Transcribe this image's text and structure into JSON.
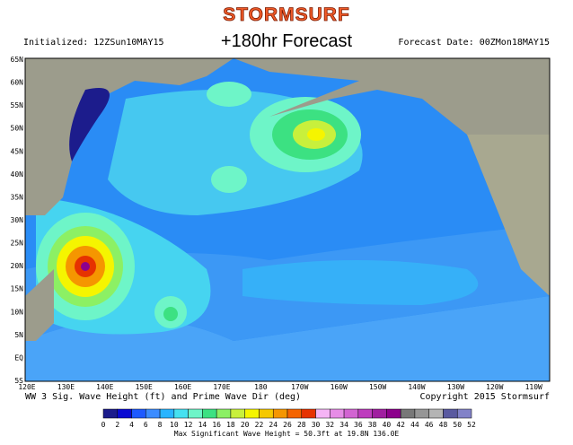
{
  "header": {
    "logo": "STORMSURF",
    "title": "+180hr Forecast",
    "initialized": "Initialized: 12ZSun10MAY15",
    "forecast_date": "Forecast Date: 00ZMon18MAY15"
  },
  "map": {
    "lat_labels": [
      "65N",
      "60N",
      "55N",
      "50N",
      "45N",
      "40N",
      "35N",
      "30N",
      "25N",
      "20N",
      "15N",
      "10N",
      "5N",
      "EQ",
      "5S"
    ],
    "lon_labels": [
      "120E",
      "130E",
      "140E",
      "150E",
      "160E",
      "170E",
      "180",
      "170W",
      "160W",
      "150W",
      "140W",
      "130W",
      "120W",
      "110W"
    ]
  },
  "footer": {
    "caption": "WW 3 Sig. Wave Height (ft) and Prime Wave Dir (deg)",
    "copyright": "Copyright 2015 Stormsurf",
    "max_note": "Max Significant Wave Height = 50.3ft at 19.8N 136.0E"
  },
  "legend": {
    "labels": [
      "0",
      "2",
      "4",
      "6",
      "8",
      "10",
      "12",
      "14",
      "16",
      "18",
      "20",
      "22",
      "24",
      "26",
      "28",
      "30",
      "32",
      "34",
      "36",
      "38",
      "40",
      "42",
      "44",
      "46",
      "48",
      "50",
      "52"
    ],
    "colors": [
      "#1c1c8c",
      "#0a0ad2",
      "#1e5aff",
      "#3c8cff",
      "#28b4ff",
      "#46e1f0",
      "#6ef5c8",
      "#3ce182",
      "#8cf064",
      "#c8f03c",
      "#f5f500",
      "#f5c800",
      "#f59600",
      "#f56400",
      "#e63200",
      "#f5b4f5",
      "#e68ce6",
      "#d264d2",
      "#be3cbe",
      "#a01ea0",
      "#8c008c",
      "#787878",
      "#969696",
      "#b4b4b4",
      "#5a5aa0",
      "#8282c8"
    ]
  }
}
